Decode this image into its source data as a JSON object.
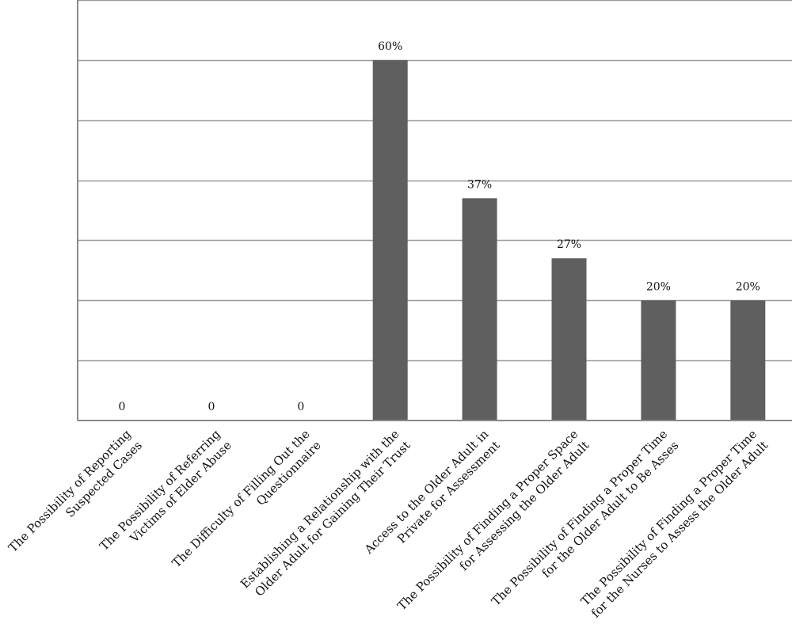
{
  "chart_data": {
    "type": "bar",
    "categories": [
      [
        "The Possibility of Reporting",
        "Suspected Cases"
      ],
      [
        "The Possibility of Referring",
        "Victims of Elder Abuse"
      ],
      [
        "The Difficulty of Filling Out the",
        "Questionnaire"
      ],
      [
        "Establishing a Relationship with the",
        "Older Adult for Gaining Their Trust"
      ],
      [
        "Access to the Older Adult in",
        "Private for Assessment"
      ],
      [
        "The Possibility of Finding a Proper Space",
        "for Assessing the Older Adult"
      ],
      [
        "The Possibility of Finding a Proper Time",
        "for the Older Adult to Be Asses"
      ],
      [
        "The Possibility of Finding a Proper Time",
        "for the Nurses to Assess the Older Adult"
      ]
    ],
    "values": [
      0,
      0,
      0,
      60,
      37,
      27,
      20,
      20
    ],
    "data_labels": [
      "0",
      "0",
      "0",
      "60%",
      "37%",
      "27%",
      "20%",
      "20%"
    ],
    "ylim": [
      0,
      70
    ],
    "ytick_step": 10,
    "grid": true,
    "colors": {
      "bar": "#5f5f5f",
      "grid": "#9a9a9a",
      "axis": "#8a8a8a"
    }
  }
}
